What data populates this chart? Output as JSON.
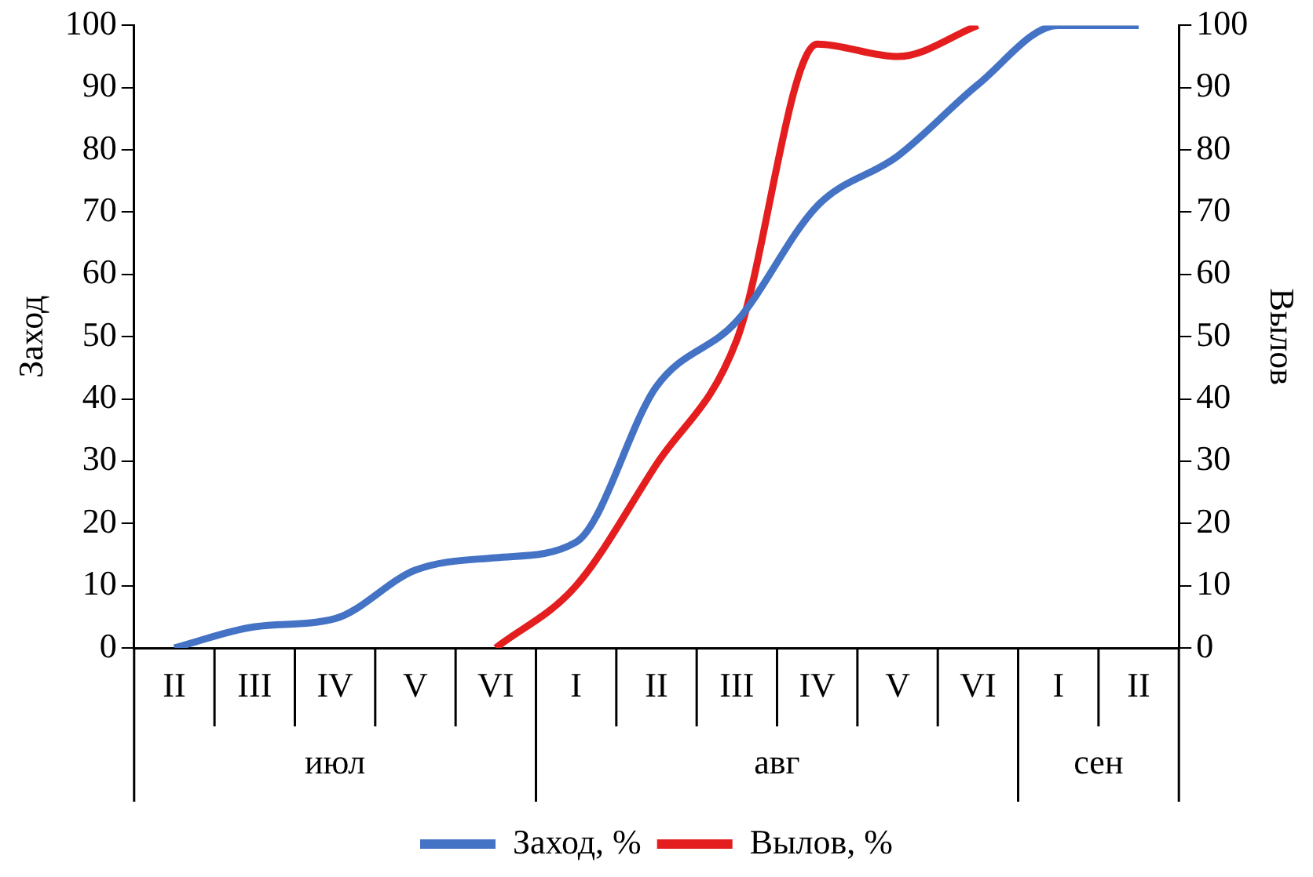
{
  "chart_data": {
    "type": "line",
    "categories": [
      "II",
      "III",
      "IV",
      "V",
      "VI",
      "I",
      "II",
      "III",
      "IV",
      "V",
      "VI",
      "I",
      "II"
    ],
    "series": [
      {
        "name": "Заход, %",
        "color": "#4472c4",
        "values": [
          0,
          3.4,
          4.7,
          12.5,
          14.5,
          17,
          42,
          52.5,
          71,
          79,
          90.5,
          100,
          100
        ]
      },
      {
        "name": "Вылов, %",
        "color": "#e41e1e",
        "values": [
          null,
          null,
          null,
          null,
          0,
          10,
          29.5,
          49.5,
          97,
          95,
          100,
          null,
          null
        ]
      }
    ],
    "ylabel": "Заход",
    "y2label": "Вылов",
    "ylim": [
      0,
      100
    ],
    "yticks": [
      0,
      10,
      20,
      30,
      40,
      50,
      60,
      70,
      80,
      90,
      100
    ],
    "y2lim": [
      0,
      100
    ],
    "y2ticks": [
      0,
      10,
      20,
      30,
      40,
      50,
      60,
      70,
      80,
      90,
      100
    ],
    "annotations": [
      "июл",
      "авг",
      "сен"
    ],
    "legend": "bottom",
    "grid": false
  }
}
